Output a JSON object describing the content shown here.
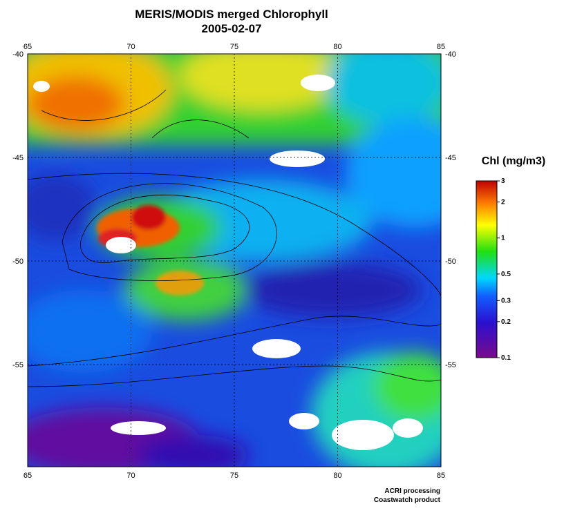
{
  "header": {
    "title": "MERIS/MODIS merged Chlorophyll",
    "date": "2005-02-07"
  },
  "map": {
    "lon_ticks": [
      65,
      70,
      75,
      80,
      85
    ],
    "lat_ticks": [
      -40,
      -45,
      -50,
      -55
    ]
  },
  "colorbar": {
    "title": "Chl (mg/m3)",
    "ticks": [
      3,
      2,
      1,
      0.5,
      0.3,
      0.2,
      0.1
    ],
    "log_scale": true
  },
  "footer": {
    "line1": "ACRI processing",
    "line2": "Coastwatch product"
  }
}
